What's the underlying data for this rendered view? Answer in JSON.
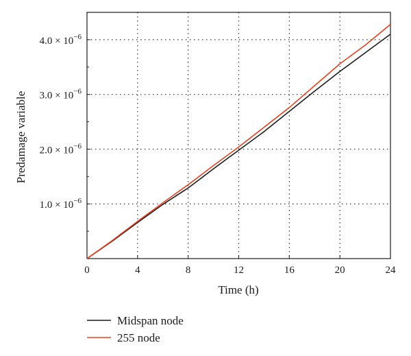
{
  "chart_data": {
    "type": "line",
    "title": "",
    "xlabel": "Time (h)",
    "ylabel": "Predamage variable",
    "xlim": [
      0,
      24
    ],
    "ylim": [
      0,
      4.5e-06
    ],
    "xticks": [
      0,
      4,
      8,
      12,
      16,
      20,
      24
    ],
    "xtick_labels": [
      "0",
      "4",
      "8",
      "12",
      "16",
      "20",
      "24"
    ],
    "yticks": [
      1e-06,
      2e-06,
      3e-06,
      4e-06
    ],
    "ytick_labels": [
      {
        "mantissa": "1.0",
        "times": "×",
        "base": "10",
        "exp": "−6"
      },
      {
        "mantissa": "2.0",
        "times": "×",
        "base": "10",
        "exp": "−6"
      },
      {
        "mantissa": "3.0",
        "times": "×",
        "base": "10",
        "exp": "−6"
      },
      {
        "mantissa": "4.0",
        "times": "×",
        "base": "10",
        "exp": "−6"
      }
    ],
    "grid": true,
    "legend_position": "bottom-left",
    "series": [
      {
        "name": "Midspan node",
        "color": "#1a1a1a",
        "x": [
          0,
          2,
          4,
          6,
          8,
          10,
          12,
          14,
          16,
          18,
          20,
          22,
          24
        ],
        "y": [
          0,
          3.2e-07,
          6.6e-07,
          9.9e-07,
          1.29e-06,
          1.64e-06,
          1.98e-06,
          2.32e-06,
          2.69e-06,
          3.06e-06,
          3.42e-06,
          3.76e-06,
          4.1e-06
        ]
      },
      {
        "name": "255 node",
        "color": "#e8401c",
        "x": [
          0,
          2,
          4,
          6,
          8,
          10,
          12,
          14,
          16,
          18,
          20,
          22,
          24
        ],
        "y": [
          0,
          3.3e-07,
          6.8e-07,
          1.02e-06,
          1.35e-06,
          1.7e-06,
          2.04e-06,
          2.4e-06,
          2.76e-06,
          3.16e-06,
          3.56e-06,
          3.9e-06,
          4.28e-06
        ]
      }
    ]
  }
}
